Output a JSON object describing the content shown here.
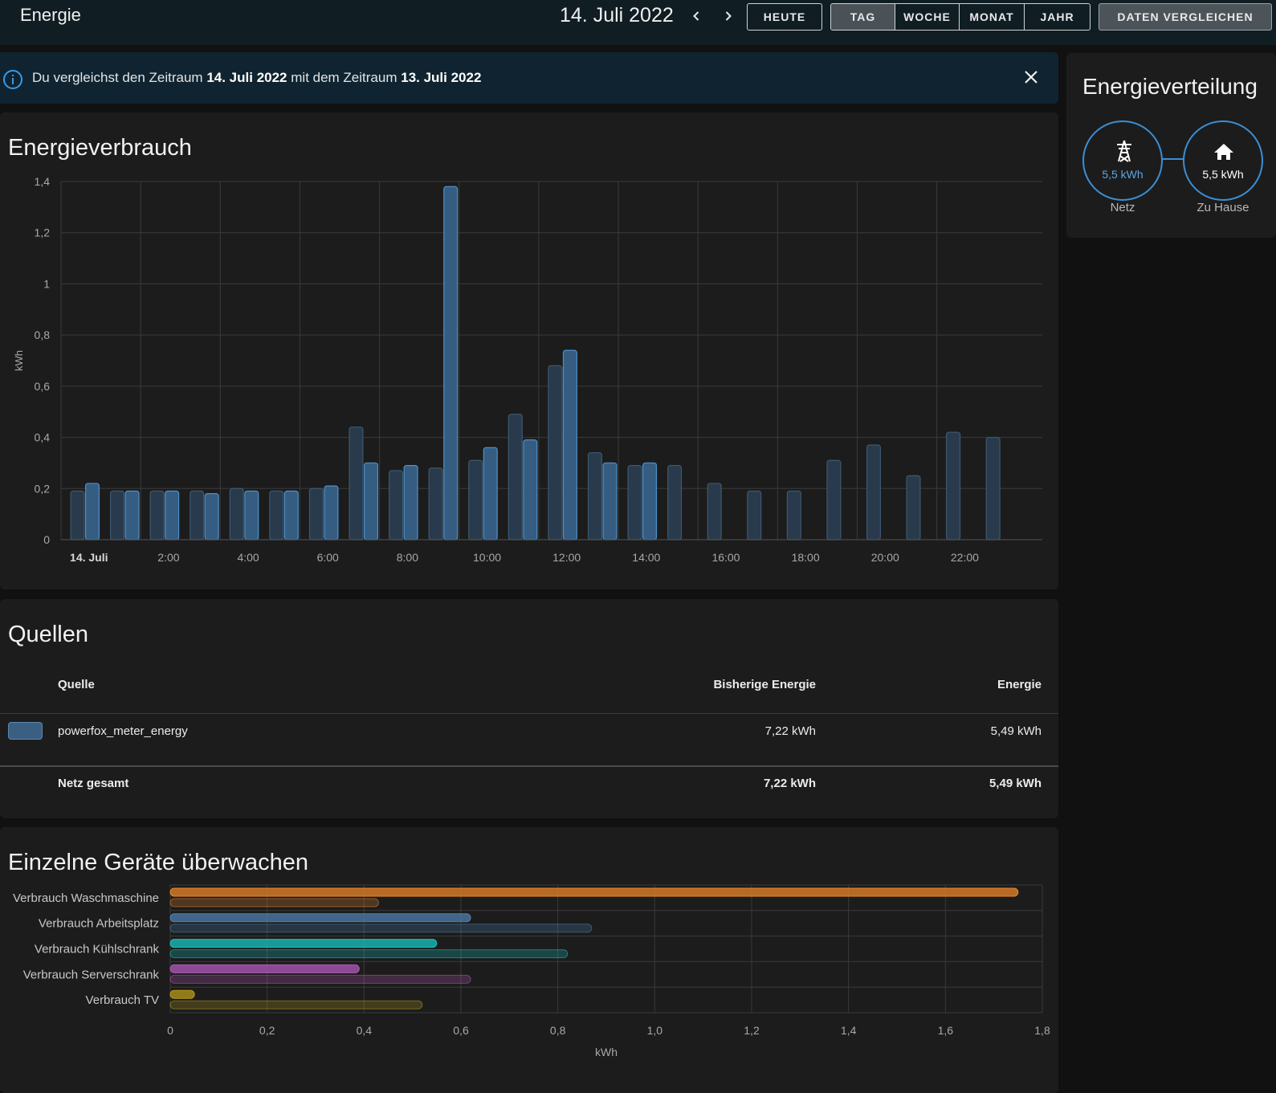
{
  "header": {
    "title": "Energie",
    "date": "14. Juli 2022",
    "prev_icon": "chevron-left-icon",
    "next_icon": "chevron-right-icon",
    "today_label": "HEUTE",
    "periods": [
      "TAG",
      "WOCHE",
      "MONAT",
      "JAHR"
    ],
    "active_period": "TAG",
    "compare_label": "DATEN VERGLEICHEN"
  },
  "banner": {
    "text_1": "Du vergleichst den Zeitraum",
    "date_1": "14. Juli 2022",
    "text_2": "mit dem Zeitraum",
    "date_2": "13. Juli 2022"
  },
  "usage": {
    "title": "Energieverbrauch"
  },
  "distribution": {
    "title": "Energieverteilung",
    "grid_value": "5,5 kWh",
    "grid_label": "Netz",
    "home_value": "5,5 kWh",
    "home_label": "Zu Hause",
    "colors": {
      "ring": "#3a8fd6",
      "grid_text": "#5aa6e6"
    }
  },
  "sources": {
    "title": "Quellen",
    "columns": [
      "Quelle",
      "Bisherige Energie",
      "Energie"
    ],
    "rows": [
      {
        "name": "powerfox_meter_energy",
        "previous": "7,22 kWh",
        "current": "5,49 kWh",
        "color": "#3b5f80"
      }
    ],
    "total": {
      "name": "Netz gesamt",
      "previous": "7,22 kWh",
      "current": "5,49 kWh"
    }
  },
  "devices": {
    "title": "Einzelne Geräte überwachen"
  },
  "chart_data": [
    {
      "type": "bar",
      "title": "Energieverbrauch",
      "ylabel": "kWh",
      "ylim": [
        0,
        1.4
      ],
      "yticks": [
        "0",
        "0,2",
        "0,4",
        "0,6",
        "0,8",
        "1",
        "1,2",
        "1,4"
      ],
      "xticks": [
        "14. Juli",
        "2:00",
        "4:00",
        "6:00",
        "8:00",
        "10:00",
        "12:00",
        "14:00",
        "16:00",
        "18:00",
        "20:00",
        "22:00"
      ],
      "categories": [
        "0:00",
        "1:00",
        "2:00",
        "3:00",
        "4:00",
        "5:00",
        "6:00",
        "7:00",
        "8:00",
        "9:00",
        "10:00",
        "11:00",
        "12:00",
        "13:00",
        "14:00",
        "15:00",
        "16:00",
        "17:00",
        "18:00",
        "19:00",
        "20:00",
        "21:00",
        "22:00",
        "23:00"
      ],
      "series": [
        {
          "values": [
            0.19,
            0.19,
            0.19,
            0.19,
            0.2,
            0.19,
            0.2,
            0.44,
            0.27,
            0.28,
            0.31,
            0.49,
            0.68,
            0.34,
            0.29,
            0.29,
            0.22,
            0.19,
            0.19,
            0.31,
            0.37,
            0.25,
            0.42,
            0.4
          ],
          "color": "#2e4459"
        },
        {
          "values": [
            0.22,
            0.19,
            0.19,
            0.18,
            0.19,
            0.19,
            0.21,
            0.3,
            0.29,
            1.38,
            0.36,
            0.39,
            0.74,
            0.3,
            0.3,
            null,
            null,
            null,
            null,
            null,
            null,
            null,
            null,
            null
          ],
          "color": "#3b6f9c"
        }
      ],
      "grid": true
    },
    {
      "type": "bar",
      "orientation": "horizontal",
      "title": "Einzelne Geräte überwachen",
      "xlabel": "kWh",
      "xlim": [
        0,
        1.8
      ],
      "xticks": [
        "0",
        "0,2",
        "0,4",
        "0,6",
        "0,8",
        "1,0",
        "1,2",
        "1,4",
        "1,6",
        "1,8"
      ],
      "categories": [
        "Verbrauch Waschmaschine",
        "Verbrauch Arbeitsplatz",
        "Verbrauch Kühlschrank",
        "Verbrauch Serverschrank",
        "Verbrauch TV"
      ],
      "series": [
        {
          "values": [
            1.75,
            0.62,
            0.55,
            0.39,
            0.05
          ]
        },
        {
          "values": [
            0.43,
            0.87,
            0.82,
            0.62,
            0.52
          ]
        }
      ],
      "colors": [
        "#e8852a",
        "#4f7fae",
        "#19c3c3",
        "#b05ab9",
        "#b79a1a"
      ],
      "grid": true
    }
  ]
}
